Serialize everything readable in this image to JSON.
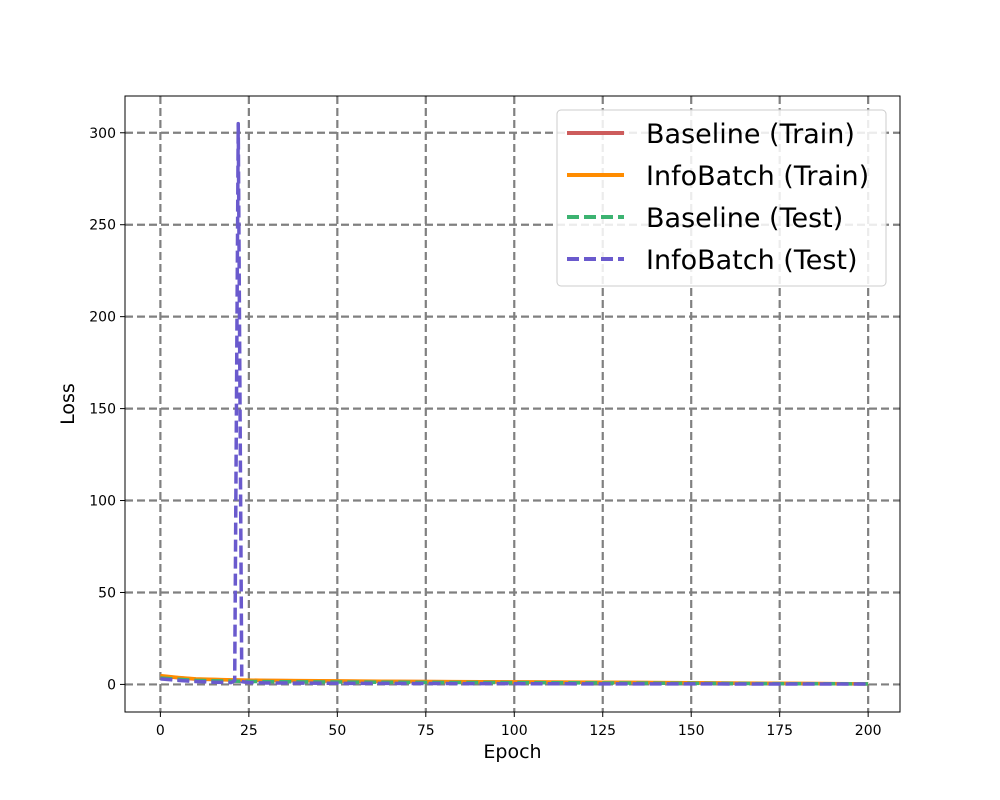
{
  "chart_data": {
    "type": "line",
    "title": "",
    "xlabel": "Epoch",
    "ylabel": "Loss",
    "xlim": [
      -10,
      209
    ],
    "ylim": [
      -15,
      320
    ],
    "x_ticks": [
      0,
      25,
      50,
      75,
      100,
      125,
      150,
      175,
      200
    ],
    "y_ticks": [
      0,
      50,
      100,
      150,
      200,
      250,
      300
    ],
    "grid": true,
    "legend_position": "top-right",
    "series": [
      {
        "name": "Baseline (Train)",
        "color": "#cd5c5c",
        "style": "solid",
        "x": [
          0,
          5,
          10,
          20,
          30,
          50,
          75,
          100,
          125,
          150,
          175,
          200
        ],
        "y": [
          4.6,
          3.6,
          2.9,
          2.4,
          2.1,
          1.8,
          1.5,
          1.3,
          1.1,
          0.8,
          0.5,
          0.3
        ]
      },
      {
        "name": "InfoBatch (Train)",
        "color": "#ff8c00",
        "style": "solid",
        "x": [
          0,
          5,
          10,
          20,
          30,
          50,
          75,
          100,
          125,
          150,
          175,
          200
        ],
        "y": [
          4.8,
          3.8,
          3.0,
          2.5,
          2.2,
          1.9,
          1.6,
          1.4,
          1.2,
          0.9,
          0.6,
          0.3
        ]
      },
      {
        "name": "Baseline (Test)",
        "color": "#3cb371",
        "style": "dashed",
        "x": [
          0,
          5,
          10,
          20,
          30,
          50,
          75,
          100,
          125,
          150,
          175,
          200
        ],
        "y": [
          3.5,
          2.8,
          2.2,
          1.8,
          1.5,
          1.3,
          1.1,
          1.0,
          0.8,
          0.6,
          0.4,
          0.3
        ]
      },
      {
        "name": "InfoBatch (Test)",
        "color": "#6a5acd",
        "style": "dashed",
        "x": [
          0,
          5,
          10,
          15,
          20,
          21,
          22,
          23,
          25,
          30,
          50,
          75,
          100,
          125,
          150,
          175,
          200
        ],
        "y": [
          3.0,
          2.2,
          1.6,
          1.2,
          1.0,
          2.0,
          305,
          1.5,
          1.0,
          0.8,
          0.6,
          0.5,
          0.4,
          0.3,
          0.3,
          0.2,
          0.2
        ]
      }
    ]
  }
}
